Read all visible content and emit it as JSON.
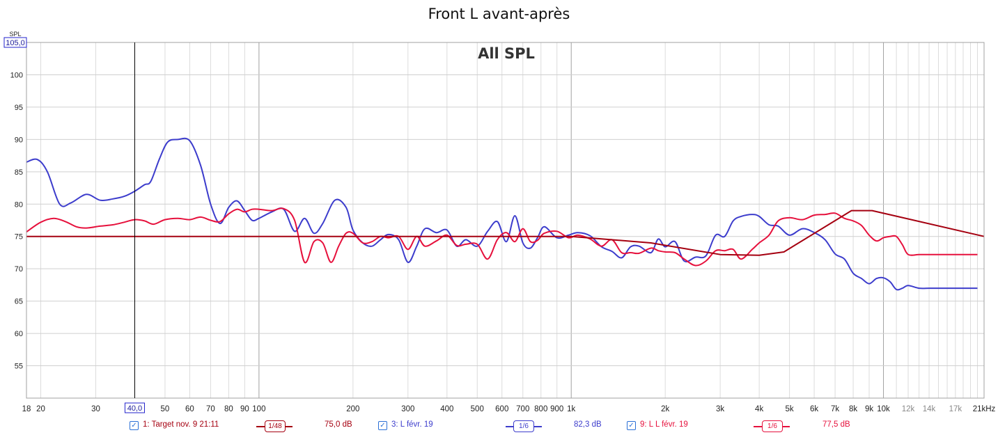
{
  "title": "Front L avant-après",
  "overlay_label": "All SPL",
  "y_axis_label": "SPL",
  "cursor": {
    "y_readout": "105,0",
    "x_readout": "40,0",
    "x_value": 40
  },
  "colors": {
    "target": "#a50010",
    "blue": "#3c3ccc",
    "red": "#e6103c",
    "grid_major": "#a0a0a0",
    "grid_minor": "#dcdcdc",
    "axis_text": "#222222"
  },
  "chart_data": {
    "type": "line",
    "title": "Front L avant-après",
    "xlabel": "",
    "ylabel": "SPL",
    "x_scale": "log",
    "xlim": [
      18,
      21000
    ],
    "ylim": [
      50,
      105
    ],
    "grid": true,
    "legend_position": "bottom",
    "y_ticks": [
      55,
      60,
      65,
      70,
      75,
      80,
      85,
      90,
      95,
      100
    ],
    "x_ticks": [
      {
        "v": 18,
        "t": "18"
      },
      {
        "v": 20,
        "t": "20"
      },
      {
        "v": 30,
        "t": "30"
      },
      {
        "v": 50,
        "t": "50"
      },
      {
        "v": 60,
        "t": "60"
      },
      {
        "v": 70,
        "t": "70"
      },
      {
        "v": 80,
        "t": "80"
      },
      {
        "v": 90,
        "t": "90"
      },
      {
        "v": 100,
        "t": "100"
      },
      {
        "v": 200,
        "t": "200"
      },
      {
        "v": 300,
        "t": "300"
      },
      {
        "v": 400,
        "t": "400"
      },
      {
        "v": 500,
        "t": "500"
      },
      {
        "v": 600,
        "t": "600"
      },
      {
        "v": 700,
        "t": "700"
      },
      {
        "v": 800,
        "t": "800"
      },
      {
        "v": 900,
        "t": "900"
      },
      {
        "v": 1000,
        "t": "1k"
      },
      {
        "v": 2000,
        "t": "2k"
      },
      {
        "v": 3000,
        "t": "3k"
      },
      {
        "v": 4000,
        "t": "4k"
      },
      {
        "v": 5000,
        "t": "5k"
      },
      {
        "v": 6000,
        "t": "6k"
      },
      {
        "v": 7000,
        "t": "7k"
      },
      {
        "v": 8000,
        "t": "8k"
      },
      {
        "v": 9000,
        "t": "9k"
      },
      {
        "v": 10000,
        "t": "10k"
      },
      {
        "v": 12000,
        "t": "12k"
      },
      {
        "v": 14000,
        "t": "14k"
      },
      {
        "v": 17000,
        "t": "17k"
      },
      {
        "v": 21000,
        "t": "21kHz"
      }
    ],
    "series": [
      {
        "name": "1: Target nov. 9 21:11",
        "smoothing": "1/48",
        "level": "75,0 dB",
        "color": "#a50010",
        "x": [
          18,
          1000,
          1800,
          3000,
          4000,
          4800,
          7900,
          9200,
          21000
        ],
        "y": [
          75,
          75,
          74,
          72.2,
          72.1,
          72.6,
          79,
          79,
          75
        ]
      },
      {
        "name": "3: L févr. 19",
        "smoothing": "1/6",
        "level": "82,3 dB",
        "color": "#3c3ccc",
        "x": [
          18,
          19.5,
          21,
          23,
          25,
          28,
          31,
          34,
          37,
          40,
          43,
          45,
          48,
          51,
          55,
          60,
          65,
          70,
          75,
          80,
          85,
          90,
          95,
          100,
          110,
          120,
          130,
          140,
          150,
          160,
          175,
          190,
          200,
          215,
          230,
          245,
          260,
          280,
          300,
          320,
          340,
          370,
          400,
          430,
          460,
          500,
          540,
          580,
          620,
          660,
          700,
          740,
          780,
          820,
          900,
          980,
          1050,
          1150,
          1250,
          1350,
          1450,
          1550,
          1650,
          1800,
          1900,
          2000,
          2150,
          2300,
          2500,
          2700,
          2900,
          3100,
          3300,
          3500,
          3800,
          4000,
          4300,
          4600,
          5000,
          5500,
          6000,
          6500,
          7000,
          7500,
          8000,
          8500,
          9000,
          9500,
          10000,
          10500,
          11000,
          11500,
          12000,
          13000,
          14000,
          15000,
          16000,
          17000,
          18000,
          19000,
          20000
        ],
        "y": [
          86.5,
          86.9,
          85,
          80,
          80.2,
          81.5,
          80.6,
          80.8,
          81.2,
          82,
          83,
          83.5,
          87,
          89.6,
          90,
          89.8,
          86,
          80,
          77,
          79.5,
          80.5,
          79,
          77.5,
          77.8,
          78.8,
          79.2,
          75.8,
          77.8,
          75.5,
          77,
          80.6,
          79.5,
          76,
          74,
          73.5,
          74.5,
          75.3,
          74.5,
          71,
          73.5,
          76.2,
          75.6,
          76,
          73.5,
          74.5,
          73.5,
          75.8,
          77.3,
          74.2,
          78.2,
          74,
          73.2,
          74.8,
          76.5,
          74.8,
          75.2,
          75.6,
          75.1,
          73.4,
          72.7,
          71.7,
          73.4,
          73.5,
          72.5,
          74.6,
          73.4,
          74.2,
          71.2,
          71.8,
          72,
          75.2,
          75,
          77.4,
          78.1,
          78.4,
          78.1,
          76.8,
          76.6,
          75.2,
          76.2,
          75.6,
          74.5,
          72.3,
          71.5,
          69.3,
          68.5,
          67.7,
          68.5,
          68.6,
          68,
          66.8,
          67,
          67.4,
          67,
          67,
          67,
          67,
          67,
          67,
          67,
          67
        ]
      },
      {
        "name": "9: L L févr. 19",
        "smoothing": "1/6",
        "level": "77,5 dB",
        "color": "#e6103c",
        "x": [
          18,
          20,
          22,
          24,
          26,
          28,
          31,
          34,
          37,
          40,
          43,
          46,
          50,
          55,
          60,
          65,
          70,
          75,
          80,
          85,
          90,
          95,
          100,
          110,
          120,
          130,
          140,
          150,
          160,
          170,
          180,
          190,
          200,
          215,
          230,
          245,
          260,
          280,
          300,
          320,
          340,
          370,
          400,
          430,
          460,
          500,
          540,
          580,
          620,
          660,
          700,
          740,
          780,
          820,
          900,
          980,
          1050,
          1150,
          1250,
          1350,
          1450,
          1550,
          1650,
          1800,
          1900,
          2000,
          2150,
          2300,
          2500,
          2700,
          2900,
          3100,
          3300,
          3500,
          3800,
          4000,
          4300,
          4600,
          5000,
          5500,
          6000,
          6500,
          7000,
          7500,
          8000,
          8500,
          9000,
          9500,
          10000,
          10500,
          11000,
          11500,
          12000,
          13000,
          14000,
          15000,
          16000,
          17000,
          18000,
          19000,
          20000
        ],
        "y": [
          75.7,
          77.2,
          77.8,
          77.3,
          76.5,
          76.3,
          76.6,
          76.8,
          77.2,
          77.6,
          77.4,
          76.9,
          77.6,
          77.8,
          77.6,
          78,
          77.5,
          77.3,
          78.5,
          79.2,
          78.8,
          79.2,
          79.2,
          79,
          79.3,
          77.5,
          71,
          74.2,
          74,
          71,
          73.5,
          75.5,
          75.5,
          74,
          74.2,
          75,
          74.8,
          75,
          73,
          75,
          73.5,
          74.3,
          75.2,
          73.6,
          73.8,
          73.8,
          71.5,
          74.5,
          75.6,
          74.2,
          76.2,
          74.2,
          74.4,
          75.5,
          75.8,
          74.8,
          75.2,
          74.6,
          73.5,
          74.5,
          72.5,
          72.5,
          72.4,
          73.2,
          72.8,
          72.6,
          72.5,
          71.5,
          70.5,
          71.2,
          72.8,
          72.8,
          73,
          71.5,
          73,
          74,
          75.2,
          77.4,
          77.9,
          77.6,
          78.3,
          78.4,
          78.6,
          77.8,
          77.4,
          76.7,
          75.2,
          74.3,
          74.8,
          75,
          75,
          73.7,
          72.2,
          72.2,
          72.2,
          72.2,
          72.2,
          72.2,
          72.2,
          72.2,
          72.2
        ]
      }
    ]
  }
}
